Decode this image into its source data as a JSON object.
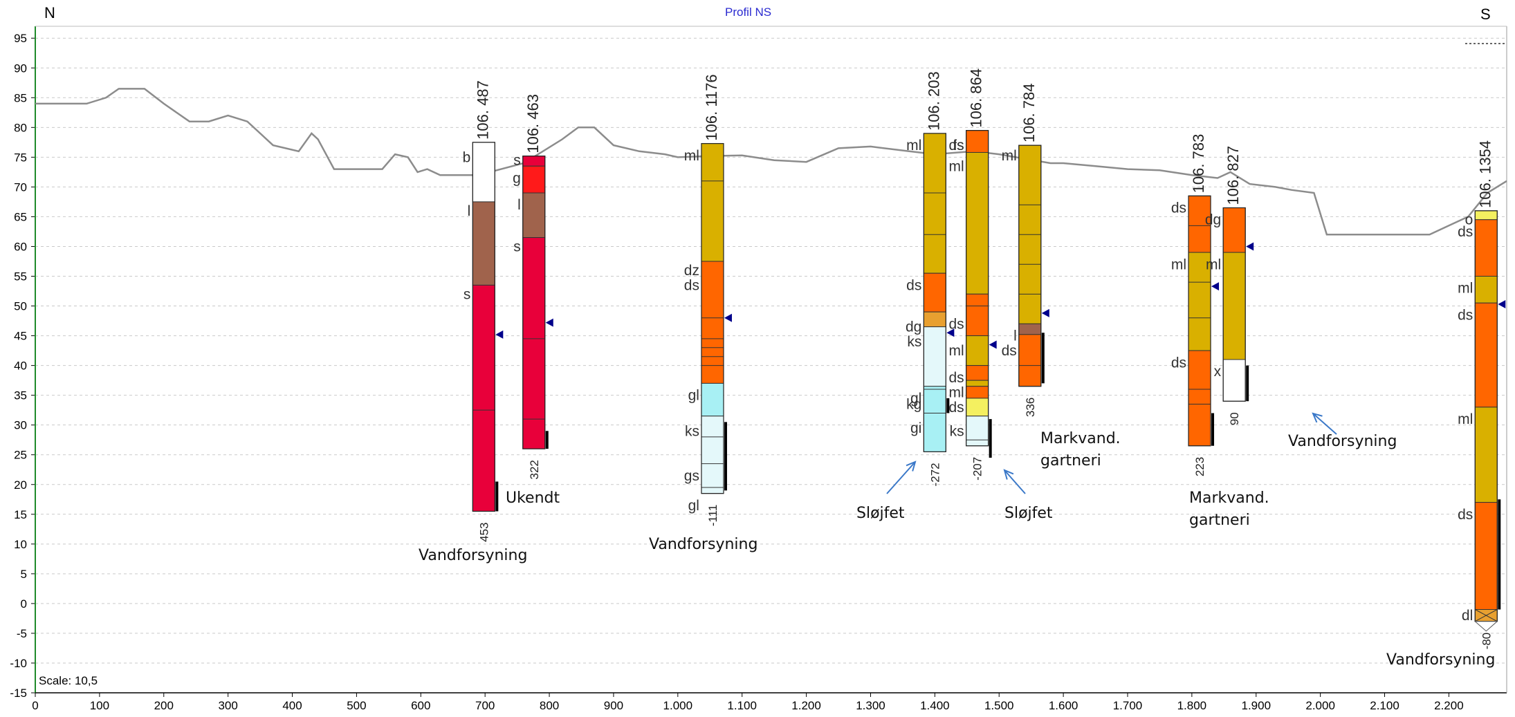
{
  "header": {
    "north": "N",
    "south": "S",
    "title": "Profil NS",
    "scale": "Scale: 10,5"
  },
  "colors": {
    "terrain": "#8c8c8c",
    "grid": "#c9c9c9",
    "axis_left": "#1f8a2a",
    "white_sand": "#ffffff",
    "brown_clay": "#a0634c",
    "red": "#e8003a",
    "bright_red": "#ff1a1a",
    "yellow": "#d9b000",
    "orange": "#ff6600",
    "cyan": "#a8f0f4",
    "pale_cyan": "#e4f8fa",
    "light_yellow": "#f4f060",
    "tan": "#e8a030",
    "arrow": "#3a78c8",
    "water_marker": "#00008b"
  },
  "chart_data": {
    "type": "geological_profile",
    "xlim": [
      0,
      2290
    ],
    "ylim": [
      -15,
      97
    ],
    "xticks": [
      {
        "v": 0,
        "t": "0"
      },
      {
        "v": 100,
        "t": "100"
      },
      {
        "v": 200,
        "t": "200"
      },
      {
        "v": 300,
        "t": "300"
      },
      {
        "v": 400,
        "t": "400"
      },
      {
        "v": 500,
        "t": "500"
      },
      {
        "v": 600,
        "t": "600"
      },
      {
        "v": 700,
        "t": "700"
      },
      {
        "v": 800,
        "t": "800"
      },
      {
        "v": 900,
        "t": "900"
      },
      {
        "v": 1000,
        "t": "1.000"
      },
      {
        "v": 1100,
        "t": "1.100"
      },
      {
        "v": 1200,
        "t": "1.200"
      },
      {
        "v": 1300,
        "t": "1.300"
      },
      {
        "v": 1400,
        "t": "1.400"
      },
      {
        "v": 1500,
        "t": "1.500"
      },
      {
        "v": 1600,
        "t": "1.600"
      },
      {
        "v": 1700,
        "t": "1.700"
      },
      {
        "v": 1800,
        "t": "1.800"
      },
      {
        "v": 1900,
        "t": "1.900"
      },
      {
        "v": 2000,
        "t": "2.000"
      },
      {
        "v": 2100,
        "t": "2.100"
      },
      {
        "v": 2200,
        "t": "2.200"
      }
    ],
    "yticks": [
      95,
      90,
      85,
      80,
      75,
      70,
      65,
      60,
      55,
      50,
      45,
      40,
      35,
      30,
      25,
      20,
      15,
      10,
      5,
      0,
      -5,
      -10,
      -15
    ],
    "terrain": [
      [
        0,
        84
      ],
      [
        80,
        84
      ],
      [
        110,
        85
      ],
      [
        130,
        86.5
      ],
      [
        170,
        86.5
      ],
      [
        200,
        84
      ],
      [
        240,
        81
      ],
      [
        270,
        81
      ],
      [
        300,
        82
      ],
      [
        330,
        81
      ],
      [
        370,
        77
      ],
      [
        410,
        76
      ],
      [
        430,
        79
      ],
      [
        440,
        78
      ],
      [
        465,
        73
      ],
      [
        480,
        73
      ],
      [
        540,
        73
      ],
      [
        560,
        75.5
      ],
      [
        580,
        75
      ],
      [
        595,
        72.5
      ],
      [
        610,
        73
      ],
      [
        630,
        72
      ],
      [
        690,
        72
      ],
      [
        725,
        73
      ],
      [
        760,
        74
      ],
      [
        790,
        76
      ],
      [
        820,
        78
      ],
      [
        845,
        80
      ],
      [
        870,
        80
      ],
      [
        900,
        77
      ],
      [
        940,
        76
      ],
      [
        980,
        75.5
      ],
      [
        1000,
        75
      ],
      [
        1050,
        75.2
      ],
      [
        1100,
        75.3
      ],
      [
        1150,
        74.5
      ],
      [
        1200,
        74.2
      ],
      [
        1250,
        76.5
      ],
      [
        1300,
        76.8
      ],
      [
        1360,
        76
      ],
      [
        1400,
        75.5
      ],
      [
        1460,
        76
      ],
      [
        1500,
        75.5
      ],
      [
        1580,
        74
      ],
      [
        1600,
        74
      ],
      [
        1650,
        73.5
      ],
      [
        1700,
        73
      ],
      [
        1750,
        72.8
      ],
      [
        1800,
        72
      ],
      [
        1840,
        71.5
      ],
      [
        1860,
        72.5
      ],
      [
        1890,
        70.5
      ],
      [
        1930,
        70
      ],
      [
        1955,
        69.5
      ],
      [
        1990,
        69
      ],
      [
        2010,
        62
      ],
      [
        2050,
        62
      ],
      [
        2100,
        62
      ],
      [
        2150,
        62
      ],
      [
        2170,
        62
      ],
      [
        2200,
        63.5
      ],
      [
        2230,
        65
      ],
      [
        2260,
        69
      ],
      [
        2290,
        71
      ]
    ],
    "boreholes": [
      {
        "x": 698,
        "id": "106. 487",
        "num": "453",
        "top": 77.5,
        "bottom": 15.5,
        "wl": 45.2,
        "screen": [
          15.5,
          20.5
        ],
        "layers": [
          {
            "t": 77.5,
            "b": 67.5,
            "c": "white_sand"
          },
          {
            "t": 67.5,
            "b": 53.5,
            "c": "brown_clay"
          },
          {
            "t": 53.5,
            "b": 15.5,
            "c": "red"
          }
        ],
        "lines": [
          32.5
        ],
        "labels": [
          {
            "y": 75,
            "t": "b"
          },
          {
            "y": 66,
            "t": "l"
          },
          {
            "y": 52,
            "t": "s"
          }
        ]
      },
      {
        "x": 776,
        "id": "106. 463",
        "num": "322",
        "top": 75.2,
        "bottom": 26,
        "wl": 47.2,
        "screen": [
          26,
          29
        ],
        "layers": [
          {
            "t": 75.2,
            "b": 73.5,
            "c": "red"
          },
          {
            "t": 73.5,
            "b": 69,
            "c": "bright_red"
          },
          {
            "t": 69,
            "b": 61.5,
            "c": "brown_clay"
          },
          {
            "t": 61.5,
            "b": 26,
            "c": "red"
          }
        ],
        "lines": [
          44.5,
          31
        ],
        "labels": [
          {
            "y": 74.5,
            "t": "s"
          },
          {
            "y": 71.5,
            "t": "g"
          },
          {
            "y": 67,
            "t": "l"
          },
          {
            "y": 60,
            "t": "s"
          }
        ]
      },
      {
        "x": 1054,
        "id": "106. 1176",
        "num": "-111",
        "top": 77.3,
        "bottom": 18.5,
        "wl": 48,
        "screen": [
          19,
          30.5
        ],
        "layers": [
          {
            "t": 77.3,
            "b": 57.5,
            "c": "yellow"
          },
          {
            "t": 57.5,
            "b": 37,
            "c": "orange"
          },
          {
            "t": 37,
            "b": 31.5,
            "c": "cyan"
          },
          {
            "t": 31.5,
            "b": 18.5,
            "c": "pale_cyan"
          }
        ],
        "lines": [
          71,
          48,
          44.5,
          43,
          41.5,
          40,
          28,
          23.5,
          19.5
        ],
        "labels": [
          {
            "y": 75.3,
            "t": "ml"
          },
          {
            "y": 56,
            "t": "dz"
          },
          {
            "y": 53.5,
            "t": "ds"
          },
          {
            "y": 35,
            "t": "gl"
          },
          {
            "y": 29,
            "t": "ks"
          },
          {
            "y": 21.5,
            "t": "gs"
          },
          {
            "y": 16.5,
            "t": "gl"
          }
        ]
      },
      {
        "x": 1400,
        "id": "106. 203",
        "num": "-272",
        "top": 79,
        "bottom": 25.5,
        "wl": 45.5,
        "screen": [
          32,
          34.5
        ],
        "layers": [
          {
            "t": 79,
            "b": 55.5,
            "c": "yellow"
          },
          {
            "t": 55.5,
            "b": 49,
            "c": "orange"
          },
          {
            "t": 49,
            "b": 46.5,
            "c": "tan"
          },
          {
            "t": 46.5,
            "b": 36.5,
            "c": "pale_cyan"
          },
          {
            "t": 36.5,
            "b": 25.5,
            "c": "cyan"
          }
        ],
        "lines": [
          69,
          62,
          36,
          32
        ],
        "labels": [
          {
            "y": 77,
            "t": "ml"
          },
          {
            "y": 53.5,
            "t": "ds"
          },
          {
            "y": 46.5,
            "t": "dg"
          },
          {
            "y": 44,
            "t": "ks"
          },
          {
            "y": 34.5,
            "t": "gl"
          },
          {
            "y": 33.5,
            "t": "kg"
          },
          {
            "y": 29.5,
            "t": "gi"
          }
        ]
      },
      {
        "x": 1466,
        "id": "106. 864",
        "num": "-207",
        "top": 79.5,
        "bottom": 26.5,
        "wl": 43.5,
        "screen": [
          24.5,
          31
        ],
        "layers": [
          {
            "t": 79.5,
            "b": 75.8,
            "c": "orange"
          },
          {
            "t": 75.8,
            "b": 52,
            "c": "yellow"
          },
          {
            "t": 52,
            "b": 45,
            "c": "orange"
          },
          {
            "t": 45,
            "b": 40,
            "c": "yellow"
          },
          {
            "t": 40,
            "b": 37.5,
            "c": "orange"
          },
          {
            "t": 37.5,
            "b": 36.5,
            "c": "yellow"
          },
          {
            "t": 36.5,
            "b": 34.5,
            "c": "orange"
          },
          {
            "t": 34.5,
            "b": 31.5,
            "c": "light_yellow"
          },
          {
            "t": 31.5,
            "b": 26.5,
            "c": "pale_cyan"
          }
        ],
        "lines": [
          50,
          27.5
        ],
        "labels": [
          {
            "y": 77,
            "t": "ds"
          },
          {
            "y": 77,
            "t": "fs"
          },
          {
            "y": 73.5,
            "t": "ml"
          },
          {
            "y": 47,
            "t": "ds"
          },
          {
            "y": 42.5,
            "t": "ml"
          },
          {
            "y": 38,
            "t": "ds"
          },
          {
            "y": 35.5,
            "t": "ml"
          },
          {
            "y": 33,
            "t": "ds"
          },
          {
            "y": 29,
            "t": "ks"
          }
        ]
      },
      {
        "x": 1548,
        "id": "106. 784",
        "num": "336",
        "top": 77,
        "bottom": 36.5,
        "wl": 48.8,
        "screen": [
          37,
          45.5
        ],
        "layers": [
          {
            "t": 77,
            "b": 47,
            "c": "yellow"
          },
          {
            "t": 47,
            "b": 45.2,
            "c": "brown_clay"
          },
          {
            "t": 45.2,
            "b": 36.5,
            "c": "orange"
          }
        ],
        "lines": [
          67,
          62,
          57,
          52,
          40
        ],
        "labels": [
          {
            "y": 75.3,
            "t": "ml"
          },
          {
            "y": 45,
            "t": "l"
          },
          {
            "y": 42.5,
            "t": "ds"
          }
        ]
      },
      {
        "x": 1812,
        "id": "106. 783",
        "num": "223",
        "top": 68.5,
        "bottom": 26.5,
        "wl": 53.3,
        "screen": [
          26.5,
          32
        ],
        "layers": [
          {
            "t": 68.5,
            "b": 59,
            "c": "orange"
          },
          {
            "t": 59,
            "b": 42.5,
            "c": "yellow"
          },
          {
            "t": 42.5,
            "b": 26.5,
            "c": "orange"
          }
        ],
        "lines": [
          63.5,
          54,
          48,
          36,
          33.5
        ],
        "labels": [
          {
            "y": 66.5,
            "t": "ds"
          },
          {
            "y": 57,
            "t": "ml"
          },
          {
            "y": 40.5,
            "t": "ds"
          }
        ]
      },
      {
        "x": 1866,
        "id": "106. 827",
        "num": "90",
        "top": 66.5,
        "bottom": 34,
        "wl": 60,
        "screen": [
          34,
          40
        ],
        "layers": [
          {
            "t": 66.5,
            "b": 59,
            "c": "orange"
          },
          {
            "t": 59,
            "b": 41,
            "c": "yellow"
          },
          {
            "t": 41,
            "b": 34,
            "c": "white_sand"
          }
        ],
        "lines": [],
        "labels": [
          {
            "y": 64.5,
            "t": "dg"
          },
          {
            "y": 57,
            "t": "ml"
          },
          {
            "y": 39,
            "t": "x"
          }
        ]
      },
      {
        "x": 2258,
        "id": "106. 1354",
        "num": "-80",
        "top": 66,
        "bottom": -3,
        "wl": 50.3,
        "screen": [
          -1,
          17.5
        ],
        "layers": [
          {
            "t": 66,
            "b": 64.5,
            "c": "light_yellow"
          },
          {
            "t": 64.5,
            "b": 55,
            "c": "orange"
          },
          {
            "t": 55,
            "b": 50.5,
            "c": "yellow"
          },
          {
            "t": 50.5,
            "b": 33,
            "c": "orange"
          },
          {
            "t": 33,
            "b": 17,
            "c": "yellow"
          },
          {
            "t": 17,
            "b": -1,
            "c": "orange"
          },
          {
            "t": -1,
            "b": -3,
            "c": "tan"
          }
        ],
        "lines": [],
        "labels": [
          {
            "y": 64.5,
            "t": "o"
          },
          {
            "y": 62.5,
            "t": "ds"
          },
          {
            "y": 53,
            "t": "ml"
          },
          {
            "y": 48.5,
            "t": "ds"
          },
          {
            "y": 31,
            "t": "ml"
          },
          {
            "y": 15,
            "t": "ds"
          },
          {
            "y": -2,
            "t": "dl"
          }
        ]
      }
    ],
    "annotations": [
      {
        "id": "ukendt",
        "text": "Ukendt"
      },
      {
        "id": "vf1",
        "text": "Vandforsyning"
      },
      {
        "id": "vf2",
        "text": "Vandforsyning"
      },
      {
        "id": "slojfet1",
        "text": "Sløjfet"
      },
      {
        "id": "slojfet2",
        "text": "Sløjfet"
      },
      {
        "id": "markvand1",
        "text": "Markvand.\ngartneri"
      },
      {
        "id": "markvand2",
        "text": "Markvand.\ngartneri"
      },
      {
        "id": "vf3",
        "text": "Vandforsyning"
      },
      {
        "id": "vf4",
        "text": "Vandforsyning"
      }
    ]
  }
}
